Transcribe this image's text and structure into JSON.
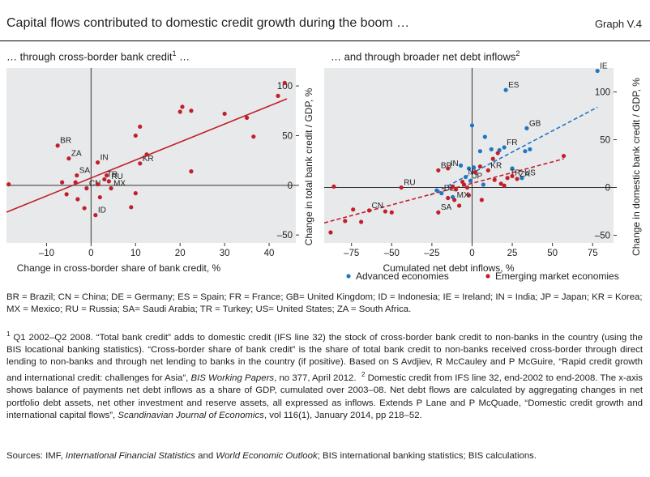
{
  "header": {
    "title": "Capital flows contributed to domestic credit growth during the boom …",
    "graph_id": "Graph V.4"
  },
  "colors": {
    "advanced": "#1f77c4",
    "emerging": "#c0202c",
    "axis": "#333333"
  },
  "chart_data": [
    {
      "type": "scatter",
      "subtitle": "… through cross-border bank credit",
      "subtitle_footnote": "1",
      "subtitle_tail": " …",
      "xlabel": "Change in cross-border share of bank credit, %",
      "ylabel": "Change in total bank credit / GDP, %",
      "xlim": [
        -19,
        46
      ],
      "ylim": [
        -58,
        118
      ],
      "x_ticks": [
        -10,
        0,
        10,
        20,
        30,
        40
      ],
      "y_ticks": [
        -50,
        0,
        50,
        100
      ],
      "y_tick_labels": [
        "–50",
        "0",
        "50",
        "100"
      ],
      "x_tick_labels": [
        "–10",
        "0",
        "10",
        "20",
        "30",
        "40"
      ],
      "grid": false,
      "series": [
        {
          "color_key": "emerging",
          "points": [
            {
              "x": -18.5,
              "y": 1
            },
            {
              "x": -7.5,
              "y": 40,
              "label": "BR"
            },
            {
              "x": -5,
              "y": 27,
              "label": "ZA"
            },
            {
              "x": -3.2,
              "y": 10,
              "label": "SA"
            },
            {
              "x": -3.5,
              "y": 3
            },
            {
              "x": -3,
              "y": -14
            },
            {
              "x": -6.5,
              "y": 3
            },
            {
              "x": -5.5,
              "y": -9
            },
            {
              "x": -1,
              "y": -3,
              "label": "CN"
            },
            {
              "x": -1.5,
              "y": -23
            },
            {
              "x": 1.5,
              "y": 23,
              "label": "IN"
            },
            {
              "x": 1.5,
              "y": 1
            },
            {
              "x": 1,
              "y": -30,
              "label": "ID"
            },
            {
              "x": 3,
              "y": 6,
              "label": "TR"
            },
            {
              "x": 4,
              "y": 4,
              "label": "RU"
            },
            {
              "x": 4.5,
              "y": -3,
              "label": "MX"
            },
            {
              "x": 3.5,
              "y": 10
            },
            {
              "x": 2,
              "y": -12
            },
            {
              "x": 9,
              "y": -22
            },
            {
              "x": 10,
              "y": -8
            },
            {
              "x": 11,
              "y": 22,
              "label": "KR"
            },
            {
              "x": 12.5,
              "y": 31
            },
            {
              "x": 10,
              "y": 50
            },
            {
              "x": 11,
              "y": 59
            },
            {
              "x": 20,
              "y": 74
            },
            {
              "x": 20.5,
              "y": 79
            },
            {
              "x": 22.5,
              "y": 75
            },
            {
              "x": 22.5,
              "y": 14
            },
            {
              "x": 30,
              "y": 72
            },
            {
              "x": 35,
              "y": 68
            },
            {
              "x": 36.5,
              "y": 49
            },
            {
              "x": 42,
              "y": 90
            },
            {
              "x": 43.5,
              "y": 103
            }
          ]
        }
      ],
      "trendlines": [
        {
          "color_key": "emerging",
          "style": "solid",
          "x": [
            -19,
            44
          ],
          "y": [
            -27,
            87
          ]
        }
      ]
    },
    {
      "type": "scatter",
      "subtitle": "… and through broader net debt inflows",
      "subtitle_footnote": "2",
      "subtitle_tail": "",
      "xlabel": "Cumulated net debt inflows, %",
      "ylabel": "Change in domestic bank credit / GDP, %",
      "xlim": [
        -92,
        88
      ],
      "ylim": [
        -58,
        125
      ],
      "x_ticks": [
        -75,
        -50,
        -25,
        0,
        25,
        50,
        75
      ],
      "x_tick_labels": [
        "–75",
        "–50",
        "–25",
        "0",
        "25",
        "50",
        "75"
      ],
      "y_ticks": [
        -50,
        0,
        50,
        100
      ],
      "y_tick_labels": [
        "–50",
        "0",
        "50",
        "100"
      ],
      "grid": false,
      "series": [
        {
          "name": "Advanced economies",
          "color_key": "advanced",
          "points": [
            {
              "x": 78,
              "y": 122,
              "label": "IE"
            },
            {
              "x": 21,
              "y": 102,
              "label": "ES"
            },
            {
              "x": 34,
              "y": 62,
              "label": "GB"
            },
            {
              "x": 0,
              "y": 65
            },
            {
              "x": 8,
              "y": 53
            },
            {
              "x": 20,
              "y": 42,
              "label": "FR"
            },
            {
              "x": 17,
              "y": 39
            },
            {
              "x": 12,
              "y": 40
            },
            {
              "x": 33,
              "y": 38
            },
            {
              "x": 36,
              "y": 40
            },
            {
              "x": 5,
              "y": 38
            },
            {
              "x": -7,
              "y": 23
            },
            {
              "x": -2,
              "y": 20
            },
            {
              "x": 1,
              "y": 21
            },
            {
              "x": -4,
              "y": 11,
              "label": "NL"
            },
            {
              "x": -1,
              "y": 7,
              "label": "JP"
            },
            {
              "x": 31,
              "y": 10,
              "label": "US"
            },
            {
              "x": 25,
              "y": 20
            },
            {
              "x": 7,
              "y": 3
            },
            {
              "x": -19,
              "y": -6,
              "label": "DE"
            },
            {
              "x": -12,
              "y": -10
            },
            {
              "x": -22,
              "y": -3
            }
          ]
        },
        {
          "name": "Emerging market economies",
          "color_key": "emerging",
          "points": [
            {
              "x": -86,
              "y": 1
            },
            {
              "x": -79,
              "y": -35
            },
            {
              "x": -74,
              "y": -23
            },
            {
              "x": -69,
              "y": -36
            },
            {
              "x": -64,
              "y": -24,
              "label": "CN"
            },
            {
              "x": -54,
              "y": -25
            },
            {
              "x": -50,
              "y": -26
            },
            {
              "x": -44,
              "y": 0,
              "label": "RU"
            },
            {
              "x": -88,
              "y": -47
            },
            {
              "x": -21,
              "y": 18,
              "label": "BR"
            },
            {
              "x": -15,
              "y": 20,
              "label": "IN"
            },
            {
              "x": -12,
              "y": 1
            },
            {
              "x": -10,
              "y": -2
            },
            {
              "x": -6,
              "y": 6
            },
            {
              "x": -5,
              "y": 3
            },
            {
              "x": -3,
              "y": 0
            },
            {
              "x": -2,
              "y": -8
            },
            {
              "x": -15,
              "y": -11
            },
            {
              "x": -11,
              "y": -13,
              "label": "MX"
            },
            {
              "x": -8,
              "y": -19
            },
            {
              "x": -21,
              "y": -26,
              "label": "SA"
            },
            {
              "x": 2,
              "y": 16
            },
            {
              "x": 5,
              "y": 22
            },
            {
              "x": 10,
              "y": 18,
              "label": "KR"
            },
            {
              "x": 13,
              "y": 30
            },
            {
              "x": 16,
              "y": 36
            },
            {
              "x": 14,
              "y": 8
            },
            {
              "x": 18,
              "y": 4
            },
            {
              "x": 20,
              "y": 2
            },
            {
              "x": 22,
              "y": 10,
              "label": "TR"
            },
            {
              "x": 25,
              "y": 12
            },
            {
              "x": 28,
              "y": 9,
              "label": "ZA"
            },
            {
              "x": 57,
              "y": 33
            },
            {
              "x": 6,
              "y": -13
            }
          ]
        }
      ],
      "trendlines": [
        {
          "color_key": "advanced",
          "style": "dashed",
          "x": [
            -26,
            78
          ],
          "y": [
            -8,
            84
          ]
        },
        {
          "color_key": "emerging",
          "style": "dashed",
          "x": [
            -92,
            57
          ],
          "y": [
            -37,
            30
          ]
        }
      ]
    }
  ],
  "legend": [
    {
      "label": "Advanced economies",
      "color_key": "advanced"
    },
    {
      "label": "Emerging market economies",
      "color_key": "emerging"
    }
  ],
  "notes": {
    "abbreviations": "BR = Brazil; CN = China; DE = Germany; ES = Spain; FR = France; GB= United Kingdom; ID = Indonesia; IE = Ireland; IN = India; JP = Japan; KR = Korea; MX = Mexico; RU = Russia; SA= Saudi Arabia; TR = Turkey; US= United States; ZA = South Africa.",
    "fn1_mark": "1",
    "fn1_text": " Q1 2002–Q2 2008. “Total bank credit” adds to domestic credit (IFS line 32) the stock of cross-border bank credit to non-banks in the country (using the BIS locational banking statistics). “Cross-border share of bank credit” is the share of total bank credit to non-banks received cross-border through direct lending to non-banks and through net lending to banks in the country (if positive). Based on S Avdjiev, R McCauley and P McGuire, “Rapid credit growth and international credit: challenges for Asia”, ",
    "fn1_italic": "BIS Working Papers",
    "fn1_tail": ", no 377, April 2012.",
    "fn2_mark": "2",
    "fn2_text": " Domestic credit from IFS line 32, end-2002 to end-2008. The x-axis shows balance of payments net debt inflows as a share of GDP, cumulated over 2003–08. Net debt flows are calculated by aggregating changes in net portfolio debt assets, net other investment and reserve assets, all expressed as inflows. Extends P Lane and P McQuade, “Domestic credit growth and international capital flows”, ",
    "fn2_italic": "Scandinavian Journal of Economics",
    "fn2_tail": ", vol 116(1), January 2014, pp 218–52.",
    "sources_lead": "Sources: IMF, ",
    "sources_italic1": "International Financial Statistics",
    "sources_mid": " and ",
    "sources_italic2": "World Economic Outlook",
    "sources_tail": "; BIS international banking statistics; BIS calculations."
  }
}
